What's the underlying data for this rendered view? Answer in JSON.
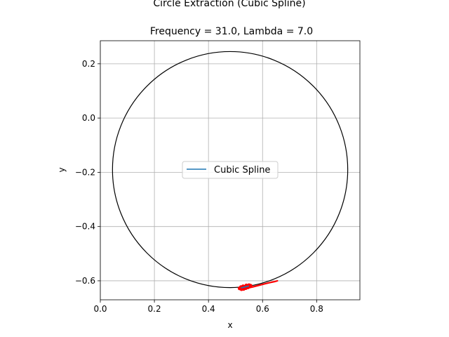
{
  "chart_data": {
    "type": "line",
    "title": "Circle Extraction (Cubic Spline)",
    "subtitle": "Frequency = 31.0, Lambda = 7.0",
    "xlabel": "x",
    "ylabel": "y",
    "xlim": [
      0.0,
      0.96
    ],
    "ylim": [
      -0.67,
      0.285
    ],
    "xticks": [
      0.0,
      0.2,
      0.4,
      0.6,
      0.8
    ],
    "xtick_labels": [
      "0.0",
      "0.2",
      "0.4",
      "0.6",
      "0.8"
    ],
    "yticks": [
      -0.6,
      -0.4,
      -0.2,
      0.0,
      0.2
    ],
    "ytick_labels": [
      "−0.6",
      "−0.4",
      "−0.2",
      "0.0",
      "0.2"
    ],
    "grid": true,
    "legend": {
      "placement": "center",
      "entries": [
        "Cubic Spline"
      ]
    },
    "circle": {
      "center_x": 0.48,
      "center_y": -0.19,
      "radius": 0.435,
      "color": "#000000"
    },
    "series": [
      {
        "name": "Cubic Spline",
        "color": "#1f77b4",
        "x": [
          0.52,
          0.53,
          0.545,
          0.55
        ],
        "y": [
          -0.626,
          -0.624,
          -0.62,
          -0.619
        ]
      }
    ],
    "extracted_points": {
      "color": "#ff0000",
      "x": [
        0.515,
        0.522,
        0.53,
        0.538,
        0.546,
        0.552,
        0.556,
        0.55,
        0.54,
        0.528,
        0.52,
        0.518,
        0.53,
        0.548,
        0.565,
        0.585,
        0.605,
        0.625,
        0.645,
        0.655
      ],
      "y": [
        -0.628,
        -0.631,
        -0.63,
        -0.627,
        -0.624,
        -0.621,
        -0.618,
        -0.616,
        -0.617,
        -0.62,
        -0.623,
        -0.626,
        -0.627,
        -0.626,
        -0.622,
        -0.617,
        -0.612,
        -0.607,
        -0.603,
        -0.6
      ]
    }
  }
}
